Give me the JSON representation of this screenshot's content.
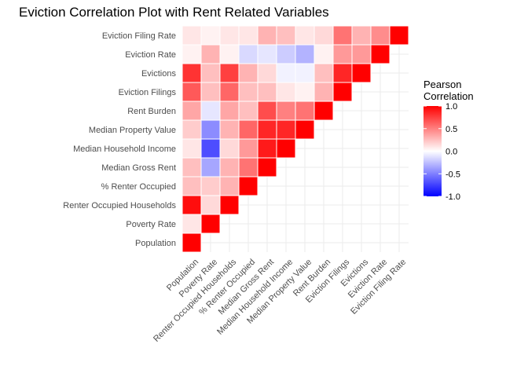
{
  "chart_data": {
    "type": "heatmap",
    "title": "Eviction Correlation Plot with Rent Related Variables",
    "xlabel": "",
    "ylabel": "",
    "variables": [
      "Population",
      "Poverty Rate",
      "Renter Occupied Households",
      "% Renter Occupied",
      "Median Gross Rent",
      "Median Household Income",
      "Median Property Value",
      "Rent Burden",
      "Eviction Filings",
      "Evictions",
      "Eviction Rate",
      "Eviction Filing Rate"
    ],
    "matrix_lower_triangle": [
      [
        1.0
      ],
      [
        0.1,
        1.0
      ],
      [
        0.95,
        0.15,
        1.0
      ],
      [
        0.25,
        0.2,
        0.3,
        1.0
      ],
      [
        0.25,
        -0.35,
        0.3,
        0.55,
        1.0
      ],
      [
        0.1,
        -0.7,
        0.15,
        0.4,
        0.9,
        1.0
      ],
      [
        0.2,
        -0.45,
        0.3,
        0.6,
        0.85,
        0.85,
        1.0
      ],
      [
        0.35,
        -0.1,
        0.35,
        0.25,
        0.7,
        0.5,
        0.55,
        1.0
      ],
      [
        0.65,
        0.25,
        0.6,
        0.25,
        0.25,
        0.1,
        0.05,
        0.3,
        1.0
      ],
      [
        0.8,
        0.25,
        0.75,
        0.3,
        0.15,
        -0.05,
        -0.05,
        0.25,
        0.85,
        1.0
      ],
      [
        0.05,
        0.3,
        0.05,
        -0.15,
        -0.1,
        -0.2,
        -0.3,
        0.05,
        0.4,
        0.4,
        1.0
      ],
      [
        0.1,
        0.05,
        0.1,
        0.1,
        0.3,
        0.25,
        0.1,
        0.15,
        0.55,
        0.3,
        0.45,
        1.0
      ]
    ],
    "color_scale": {
      "low": "#0000FF",
      "mid": "#FFFFFF",
      "high": "#FF0000",
      "limits": [
        -1.0,
        1.0
      ]
    },
    "legend": {
      "title_lines": [
        "Pearson",
        "Correlation"
      ],
      "ticks": [
        "1.0",
        "0.5",
        "0.0",
        "-0.5",
        "-1.0"
      ],
      "tick_values": [
        1.0,
        0.5,
        0.0,
        -0.5,
        -1.0
      ],
      "placement": "right"
    },
    "grid": true
  }
}
